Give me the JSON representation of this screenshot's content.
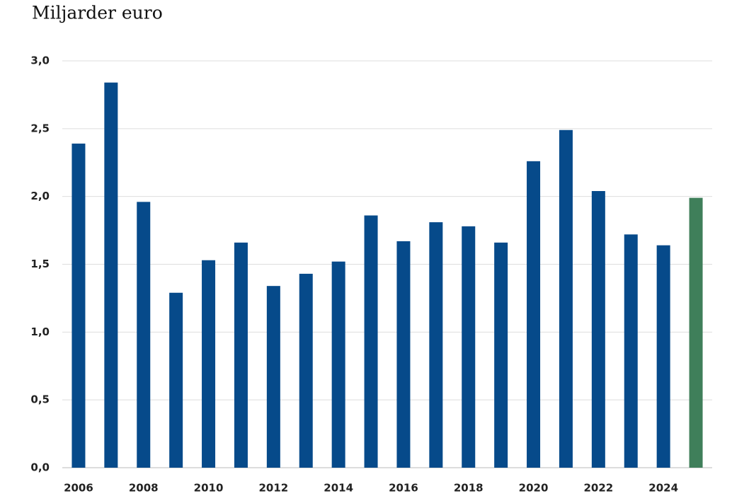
{
  "chart_data": {
    "type": "bar",
    "subtitle": "Miljarder euro",
    "categories": [
      "2006",
      null,
      "2008",
      null,
      "2010",
      null,
      "2012",
      null,
      "2014",
      null,
      "2016",
      null,
      "2018",
      null,
      "2020",
      null,
      "2022",
      null,
      "2024",
      null
    ],
    "values": [
      2.39,
      2.84,
      1.96,
      1.29,
      1.53,
      1.66,
      1.34,
      1.43,
      1.52,
      1.86,
      1.67,
      1.81,
      1.78,
      1.66,
      2.26,
      2.49,
      2.04,
      1.72,
      1.64,
      1.99
    ],
    "colors": [
      "#064a8a",
      "#064a8a",
      "#064a8a",
      "#064a8a",
      "#064a8a",
      "#064a8a",
      "#064a8a",
      "#064a8a",
      "#064a8a",
      "#064a8a",
      "#064a8a",
      "#064a8a",
      "#064a8a",
      "#064a8a",
      "#064a8a",
      "#064a8a",
      "#064a8a",
      "#064a8a",
      "#064a8a",
      "#3f7f5a"
    ],
    "ylim": [
      0,
      3
    ],
    "yticks": [
      {
        "value": 0,
        "label": "0,0"
      },
      {
        "value": 0.5,
        "label": "0,5"
      },
      {
        "value": 1,
        "label": "1,0"
      },
      {
        "value": 1.5,
        "label": "1,5"
      },
      {
        "value": 2,
        "label": "2,0"
      },
      {
        "value": 2.5,
        "label": "2,5"
      },
      {
        "value": 3,
        "label": "3,0"
      }
    ],
    "grid": true
  }
}
